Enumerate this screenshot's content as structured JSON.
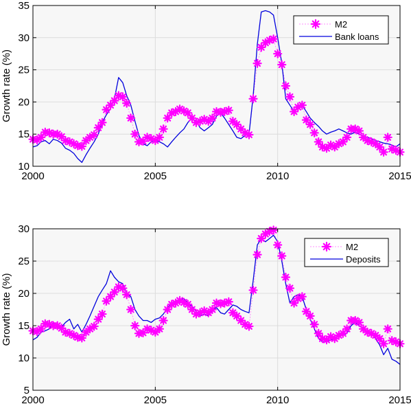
{
  "chart_data": [
    {
      "type": "line",
      "xlim": [
        2000,
        2015
      ],
      "ylim": [
        10,
        35
      ],
      "xticks": [
        2000,
        2005,
        2010,
        2015
      ],
      "yticks": [
        10,
        15,
        20,
        25,
        30,
        35
      ],
      "xtick_labels": [
        "2000",
        "2005",
        "2010",
        "2015"
      ],
      "ytick_labels": [
        "10",
        "15",
        "20",
        "25",
        "30",
        "35"
      ],
      "ylabel": "Growth rate (%)",
      "grid": true,
      "legend_position": "top-right",
      "series": [
        {
          "name": "M2",
          "style": "markers",
          "color": "#ff00ff",
          "x": [
            2000.0,
            2000.17,
            2000.33,
            2000.5,
            2000.67,
            2000.83,
            2001.0,
            2001.17,
            2001.33,
            2001.5,
            2001.67,
            2001.83,
            2002.0,
            2002.17,
            2002.33,
            2002.5,
            2002.67,
            2002.83,
            2003.0,
            2003.17,
            2003.33,
            2003.5,
            2003.67,
            2003.83,
            2004.0,
            2004.17,
            2004.33,
            2004.5,
            2004.67,
            2004.83,
            2005.0,
            2005.17,
            2005.33,
            2005.5,
            2005.67,
            2005.83,
            2006.0,
            2006.17,
            2006.33,
            2006.5,
            2006.67,
            2006.83,
            2007.0,
            2007.17,
            2007.33,
            2007.5,
            2007.67,
            2007.83,
            2008.0,
            2008.17,
            2008.33,
            2008.5,
            2008.67,
            2008.83,
            2009.0,
            2009.17,
            2009.33,
            2009.5,
            2009.67,
            2009.83,
            2010.0,
            2010.17,
            2010.33,
            2010.5,
            2010.67,
            2010.83,
            2011.0,
            2011.17,
            2011.33,
            2011.5,
            2011.67,
            2011.83,
            2012.0,
            2012.17,
            2012.33,
            2012.5,
            2012.67,
            2012.83,
            2013.0,
            2013.17,
            2013.33,
            2013.5,
            2013.67,
            2013.83,
            2014.0,
            2014.17,
            2014.33,
            2014.5,
            2014.67,
            2014.83,
            2015.0
          ],
          "y": [
            14.2,
            14.1,
            14.5,
            15.3,
            15.2,
            15.0,
            15.0,
            14.6,
            14.0,
            13.8,
            13.5,
            13.2,
            13.1,
            14.0,
            14.5,
            14.9,
            16.0,
            16.8,
            18.8,
            19.5,
            20.2,
            21.0,
            20.8,
            19.8,
            17.5,
            15.0,
            13.8,
            13.9,
            14.5,
            14.3,
            14.0,
            14.5,
            15.8,
            17.5,
            18.3,
            18.5,
            18.9,
            18.6,
            18.3,
            17.5,
            16.8,
            17.0,
            17.3,
            17.0,
            17.5,
            18.5,
            18.4,
            18.5,
            18.7,
            17.0,
            16.5,
            15.8,
            15.2,
            14.9,
            20.5,
            26.0,
            28.5,
            29.2,
            29.6,
            29.8,
            27.5,
            25.8,
            22.5,
            20.8,
            18.5,
            19.2,
            19.5,
            17.2,
            16.5,
            15.2,
            13.8,
            13.0,
            12.8,
            13.3,
            13.0,
            13.5,
            13.8,
            14.5,
            15.8,
            15.8,
            15.5,
            14.5,
            14.0,
            13.8,
            13.5,
            13.0,
            12.2,
            14.5,
            12.7,
            12.5,
            12.2
          ]
        },
        {
          "name": "Bank loans",
          "style": "line",
          "color": "#0000dd",
          "x": [
            2000.0,
            2000.17,
            2000.33,
            2000.5,
            2000.67,
            2000.83,
            2001.0,
            2001.17,
            2001.33,
            2001.5,
            2001.67,
            2001.83,
            2002.0,
            2002.17,
            2002.33,
            2002.5,
            2002.67,
            2002.83,
            2003.0,
            2003.17,
            2003.33,
            2003.5,
            2003.67,
            2003.83,
            2004.0,
            2004.17,
            2004.33,
            2004.5,
            2004.67,
            2004.83,
            2005.0,
            2005.17,
            2005.33,
            2005.5,
            2005.67,
            2005.83,
            2006.0,
            2006.17,
            2006.33,
            2006.5,
            2006.67,
            2006.83,
            2007.0,
            2007.17,
            2007.33,
            2007.5,
            2007.67,
            2007.83,
            2008.0,
            2008.17,
            2008.33,
            2008.5,
            2008.67,
            2008.83,
            2009.0,
            2009.17,
            2009.33,
            2009.5,
            2009.67,
            2009.83,
            2010.0,
            2010.17,
            2010.33,
            2010.5,
            2010.67,
            2010.83,
            2011.0,
            2011.17,
            2011.33,
            2011.5,
            2011.67,
            2011.83,
            2012.0,
            2012.17,
            2012.33,
            2012.5,
            2012.67,
            2012.83,
            2013.0,
            2013.17,
            2013.33,
            2013.5,
            2013.67,
            2013.83,
            2014.0,
            2014.17,
            2014.33,
            2014.5,
            2014.67,
            2014.83,
            2015.0
          ],
          "y": [
            13.0,
            13.2,
            13.8,
            14.0,
            13.5,
            14.2,
            14.0,
            13.6,
            12.8,
            12.5,
            12.0,
            11.2,
            10.6,
            11.8,
            12.8,
            13.8,
            15.0,
            16.8,
            18.0,
            19.0,
            20.5,
            23.8,
            23.0,
            21.0,
            19.5,
            17.0,
            14.8,
            13.5,
            13.2,
            13.8,
            14.0,
            13.8,
            13.5,
            13.0,
            13.8,
            14.5,
            15.2,
            15.8,
            16.8,
            17.5,
            17.0,
            16.0,
            15.5,
            16.0,
            16.5,
            17.8,
            18.3,
            17.5,
            16.5,
            15.5,
            14.5,
            14.3,
            14.8,
            15.0,
            21.0,
            29.0,
            34.0,
            34.2,
            34.0,
            33.5,
            30.0,
            26.0,
            20.5,
            19.5,
            18.5,
            19.0,
            19.5,
            18.5,
            17.5,
            16.8,
            16.2,
            15.5,
            15.0,
            15.3,
            15.5,
            15.8,
            15.5,
            15.2,
            15.0,
            15.3,
            15.0,
            14.7,
            14.5,
            14.3,
            14.0,
            13.8,
            13.6,
            13.5,
            13.3,
            13.0,
            13.5
          ]
        }
      ]
    },
    {
      "type": "line",
      "xlim": [
        2000,
        2015
      ],
      "ylim": [
        5,
        30
      ],
      "xticks": [
        2000,
        2005,
        2010,
        2015
      ],
      "yticks": [
        5,
        10,
        15,
        20,
        25,
        30
      ],
      "xtick_labels": [
        "2000",
        "2005",
        "2010",
        "2015"
      ],
      "ytick_labels": [
        "5",
        "10",
        "15",
        "20",
        "25",
        "30"
      ],
      "ylabel": "Growth rate (%)",
      "grid": true,
      "legend_position": "top-right",
      "series": [
        {
          "name": "M2",
          "style": "markers",
          "color": "#ff00ff",
          "x": [
            2000.0,
            2000.17,
            2000.33,
            2000.5,
            2000.67,
            2000.83,
            2001.0,
            2001.17,
            2001.33,
            2001.5,
            2001.67,
            2001.83,
            2002.0,
            2002.17,
            2002.33,
            2002.5,
            2002.67,
            2002.83,
            2003.0,
            2003.17,
            2003.33,
            2003.5,
            2003.67,
            2003.83,
            2004.0,
            2004.17,
            2004.33,
            2004.5,
            2004.67,
            2004.83,
            2005.0,
            2005.17,
            2005.33,
            2005.5,
            2005.67,
            2005.83,
            2006.0,
            2006.17,
            2006.33,
            2006.5,
            2006.67,
            2006.83,
            2007.0,
            2007.17,
            2007.33,
            2007.5,
            2007.67,
            2007.83,
            2008.0,
            2008.17,
            2008.33,
            2008.5,
            2008.67,
            2008.83,
            2009.0,
            2009.17,
            2009.33,
            2009.5,
            2009.67,
            2009.83,
            2010.0,
            2010.17,
            2010.33,
            2010.5,
            2010.67,
            2010.83,
            2011.0,
            2011.17,
            2011.33,
            2011.5,
            2011.67,
            2011.83,
            2012.0,
            2012.17,
            2012.33,
            2012.5,
            2012.67,
            2012.83,
            2013.0,
            2013.17,
            2013.33,
            2013.5,
            2013.67,
            2013.83,
            2014.0,
            2014.17,
            2014.33,
            2014.5,
            2014.67,
            2014.83,
            2015.0
          ],
          "y": [
            14.2,
            14.1,
            14.5,
            15.3,
            15.2,
            15.0,
            15.0,
            14.6,
            14.0,
            13.8,
            13.5,
            13.2,
            13.1,
            14.0,
            14.5,
            14.9,
            16.0,
            16.8,
            18.8,
            19.5,
            20.2,
            21.0,
            20.8,
            19.8,
            17.5,
            15.0,
            13.8,
            13.9,
            14.5,
            14.3,
            14.0,
            14.5,
            15.8,
            17.5,
            18.3,
            18.5,
            18.9,
            18.6,
            18.3,
            17.5,
            16.8,
            17.0,
            17.3,
            17.0,
            17.5,
            18.5,
            18.4,
            18.5,
            18.7,
            17.0,
            16.5,
            15.8,
            15.2,
            14.9,
            20.5,
            26.0,
            28.5,
            29.2,
            29.6,
            29.8,
            27.5,
            25.8,
            22.5,
            20.8,
            18.5,
            19.2,
            19.5,
            17.2,
            16.5,
            15.2,
            13.8,
            13.0,
            12.8,
            13.3,
            13.0,
            13.5,
            13.8,
            14.5,
            15.8,
            15.8,
            15.5,
            14.5,
            14.0,
            13.8,
            13.5,
            13.0,
            12.2,
            14.5,
            12.7,
            12.5,
            12.2
          ]
        },
        {
          "name": "Deposits",
          "style": "line",
          "color": "#0000dd",
          "x": [
            2000.0,
            2000.17,
            2000.33,
            2000.5,
            2000.67,
            2000.83,
            2001.0,
            2001.17,
            2001.33,
            2001.5,
            2001.67,
            2001.83,
            2002.0,
            2002.17,
            2002.33,
            2002.5,
            2002.67,
            2002.83,
            2003.0,
            2003.17,
            2003.33,
            2003.5,
            2003.67,
            2003.83,
            2004.0,
            2004.17,
            2004.33,
            2004.5,
            2004.67,
            2004.83,
            2005.0,
            2005.17,
            2005.33,
            2005.5,
            2005.67,
            2005.83,
            2006.0,
            2006.17,
            2006.33,
            2006.5,
            2006.67,
            2006.83,
            2007.0,
            2007.17,
            2007.33,
            2007.5,
            2007.67,
            2007.83,
            2008.0,
            2008.17,
            2008.33,
            2008.5,
            2008.67,
            2008.83,
            2009.0,
            2009.17,
            2009.33,
            2009.5,
            2009.67,
            2009.83,
            2010.0,
            2010.17,
            2010.33,
            2010.5,
            2010.67,
            2010.83,
            2011.0,
            2011.17,
            2011.33,
            2011.5,
            2011.67,
            2011.83,
            2012.0,
            2012.17,
            2012.33,
            2012.5,
            2012.67,
            2012.83,
            2013.0,
            2013.17,
            2013.33,
            2013.5,
            2013.67,
            2013.83,
            2014.0,
            2014.17,
            2014.33,
            2014.5,
            2014.67,
            2014.83,
            2015.0
          ],
          "y": [
            12.8,
            13.2,
            14.0,
            14.2,
            14.5,
            15.5,
            15.0,
            14.8,
            15.5,
            16.0,
            14.5,
            15.2,
            14.0,
            15.2,
            16.5,
            18.0,
            19.5,
            20.5,
            21.5,
            23.5,
            22.5,
            21.8,
            21.5,
            20.0,
            19.5,
            17.5,
            16.5,
            15.8,
            15.8,
            15.5,
            16.0,
            16.2,
            16.8,
            17.8,
            18.5,
            18.8,
            19.0,
            19.2,
            18.5,
            18.0,
            17.2,
            16.5,
            16.8,
            16.5,
            17.5,
            17.8,
            17.0,
            16.8,
            17.5,
            18.2,
            18.0,
            17.5,
            17.2,
            17.0,
            22.0,
            27.5,
            28.5,
            28.0,
            28.5,
            29.0,
            28.0,
            25.0,
            21.5,
            18.5,
            19.5,
            19.8,
            19.5,
            17.5,
            16.0,
            14.5,
            13.0,
            12.5,
            12.5,
            12.8,
            13.0,
            13.5,
            13.5,
            13.8,
            15.0,
            15.5,
            15.0,
            14.5,
            14.0,
            13.8,
            13.0,
            12.0,
            10.5,
            11.5,
            9.8,
            9.5,
            9.0
          ]
        }
      ]
    }
  ]
}
